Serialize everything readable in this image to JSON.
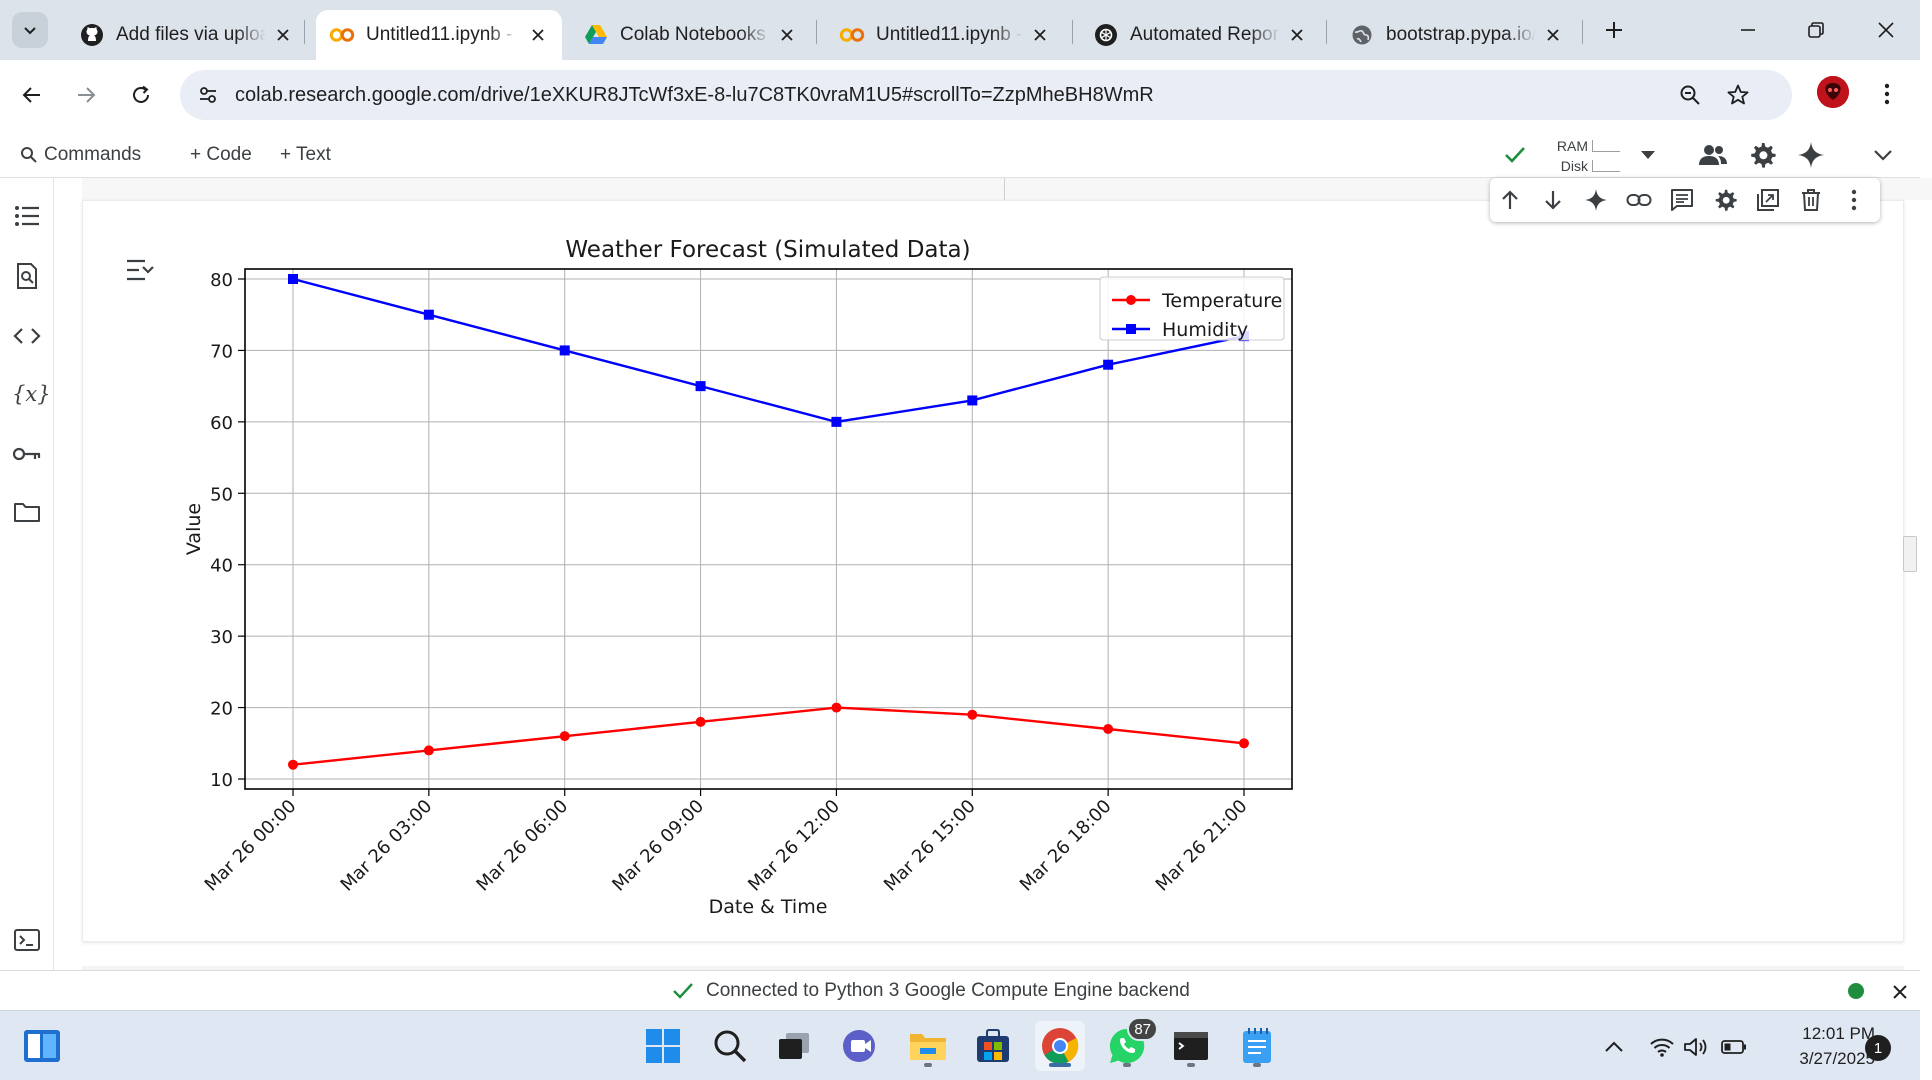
{
  "browser": {
    "tabs": [
      {
        "title": "Add files via uploa",
        "favicon": "github-icon",
        "active": false
      },
      {
        "title": "Untitled11.ipynb -",
        "favicon": "colab-icon",
        "active": true
      },
      {
        "title": "Colab Notebooks -",
        "favicon": "google-drive-icon",
        "active": false
      },
      {
        "title": "Untitled11.ipynb -",
        "favicon": "colab-icon",
        "active": false
      },
      {
        "title": "Automated Report",
        "favicon": "openai-icon",
        "active": false
      },
      {
        "title": "bootstrap.pypa.io/",
        "favicon": "globe-icon",
        "active": false
      }
    ],
    "url": "colab.research.google.com/drive/1eXKUR8JTcWf3xE-8-lu7C8TK0vraM1U5#scrollTo=ZzpMheBH8WmR"
  },
  "colab": {
    "commands_label": "Commands",
    "add_code_label": "+ Code",
    "add_text_label": "+ Text",
    "ram_label": "RAM",
    "disk_label": "Disk"
  },
  "chart_data": {
    "type": "line",
    "title": "Weather Forecast (Simulated Data)",
    "xlabel": "Date & Time",
    "ylabel": "Value",
    "categories": [
      "Mar 26 00:00",
      "Mar 26 03:00",
      "Mar 26 06:00",
      "Mar 26 09:00",
      "Mar 26 12:00",
      "Mar 26 15:00",
      "Mar 26 18:00",
      "Mar 26 21:00"
    ],
    "series": [
      {
        "name": "Temperature",
        "color": "#ff0000",
        "marker": "circle",
        "values": [
          12,
          14,
          16,
          18,
          20,
          19,
          17,
          15
        ]
      },
      {
        "name": "Humidity",
        "color": "#0000ff",
        "marker": "square",
        "values": [
          80,
          75,
          70,
          65,
          60,
          63,
          68,
          72
        ]
      }
    ],
    "ylim": [
      8.6,
      81.4
    ],
    "yticks": [
      10,
      20,
      30,
      40,
      50,
      60,
      70,
      80
    ],
    "grid": true,
    "legend": "top-right"
  },
  "status": {
    "message": "Connected to Python 3 Google Compute Engine backend"
  },
  "taskbar": {
    "whatsapp_badge": "87",
    "time": "12:01 PM",
    "date": "3/27/2025",
    "notifications": "1"
  }
}
